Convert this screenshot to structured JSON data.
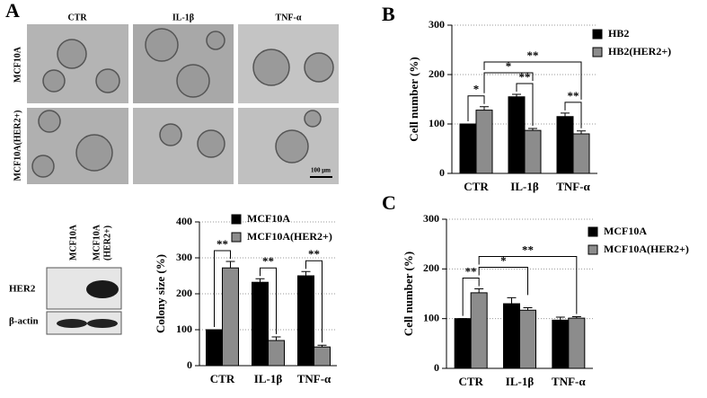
{
  "figure": {
    "panel_labels": [
      "A",
      "B",
      "C"
    ],
    "micrographs": {
      "columns": [
        "CTR",
        "IL-1β",
        "TNF-α"
      ],
      "rows": [
        "MCF10A",
        "MCF10A(HER2+)"
      ],
      "scale_bar": "100 μm"
    },
    "blot": {
      "lanes": [
        [
          "MCF10A"
        ],
        [
          "MCF10A",
          "(HER2+)"
        ]
      ],
      "rows": [
        "HER2",
        "β-actin"
      ]
    }
  },
  "chart_data": [
    {
      "type": "bar",
      "ylabel": "Colony size (%)",
      "categories": [
        "CTR",
        "IL-1β",
        "TNF-α"
      ],
      "ylim": [
        0,
        400
      ],
      "yticks": [
        0,
        100,
        200,
        300,
        400
      ],
      "grid": true,
      "legend": "upper right",
      "series": [
        {
          "name": "MCF10A",
          "color": "#000000",
          "values": [
            100,
            232,
            250
          ],
          "errors": [
            0,
            10,
            12
          ]
        },
        {
          "name": "MCF10A(HER2+)",
          "color": "#8c8c8c",
          "values": [
            272,
            70,
            52
          ],
          "errors": [
            18,
            10,
            5
          ]
        }
      ],
      "annotations": [
        {
          "text": "**",
          "from": [
            0,
            0
          ],
          "to": [
            0,
            1
          ]
        },
        {
          "text": "**",
          "from": [
            1,
            0
          ],
          "to": [
            1,
            1
          ]
        },
        {
          "text": "**",
          "from": [
            2,
            0
          ],
          "to": [
            2,
            1
          ]
        }
      ]
    },
    {
      "type": "bar",
      "ylabel": "Cell number (%)",
      "categories": [
        "CTR",
        "IL-1β",
        "TNF-α"
      ],
      "ylim": [
        0,
        300
      ],
      "yticks": [
        0,
        100,
        200,
        300
      ],
      "grid": true,
      "legend": "upper right",
      "series": [
        {
          "name": "HB2",
          "color": "#000000",
          "values": [
            100,
            155,
            115
          ],
          "errors": [
            0,
            5,
            7
          ]
        },
        {
          "name": "HB2(HER2+)",
          "color": "#8c8c8c",
          "values": [
            128,
            87,
            80
          ],
          "errors": [
            7,
            4,
            6
          ]
        }
      ],
      "annotations": [
        {
          "text": "*",
          "from": [
            0,
            0
          ],
          "to": [
            0,
            1
          ]
        },
        {
          "text": "**",
          "from": [
            1,
            0
          ],
          "to": [
            1,
            1
          ]
        },
        {
          "text": "**",
          "from": [
            2,
            0
          ],
          "to": [
            2,
            1
          ]
        },
        {
          "text": "*",
          "from": [
            0,
            1
          ],
          "to": [
            1,
            1
          ]
        },
        {
          "text": "**",
          "from": [
            0,
            1
          ],
          "to": [
            2,
            1
          ]
        }
      ]
    },
    {
      "type": "bar",
      "ylabel": "Cell number (%)",
      "categories": [
        "CTR",
        "IL-1β",
        "TNF-α"
      ],
      "ylim": [
        0,
        300
      ],
      "yticks": [
        0,
        100,
        200,
        300
      ],
      "grid": true,
      "legend": "upper right",
      "series": [
        {
          "name": "MCF10A",
          "color": "#000000",
          "values": [
            100,
            130,
            97
          ],
          "errors": [
            0,
            12,
            6
          ]
        },
        {
          "name": "MCF10A(HER2+)",
          "color": "#8c8c8c",
          "values": [
            152,
            117,
            101
          ],
          "errors": [
            8,
            5,
            3
          ]
        }
      ],
      "annotations": [
        {
          "text": "**",
          "from": [
            0,
            0
          ],
          "to": [
            0,
            1
          ]
        },
        {
          "text": "*",
          "from": [
            0,
            1
          ],
          "to": [
            1,
            1
          ]
        },
        {
          "text": "**",
          "from": [
            0,
            1
          ],
          "to": [
            2,
            1
          ]
        }
      ]
    }
  ]
}
